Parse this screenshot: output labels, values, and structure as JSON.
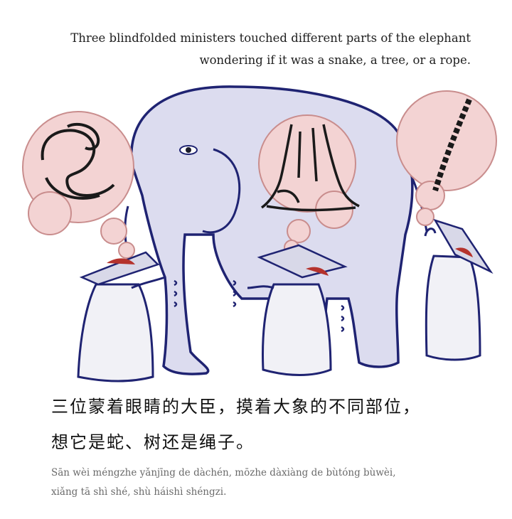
{
  "caption_en": {
    "line1": "Three blindfolded ministers touched different parts of the elephant",
    "line2": "wondering if it was a snake, a tree, or a rope."
  },
  "caption_zh": {
    "line1": "三位蒙着眼睛的大臣，摸着大象的不同部位，",
    "line2": "想它是蛇、树还是绳子。"
  },
  "pinyin": {
    "line1": "Sān wèi méngzhe yǎnjīng de dàchén, mōzhe dàxiàng de bùtóng bùwèi,",
    "line2": "xiǎng tā shì shé, shù háishì shéngzi."
  },
  "colors": {
    "elephant_fill": "#dcdcef",
    "outline": "#1f2372",
    "cloud_fill": "#f3d3d3",
    "cloud_edge": "#c98d8d",
    "robe_fill": "#f1f1f6",
    "hat_fill": "#d8d8e8",
    "hair": "#b5322c"
  }
}
